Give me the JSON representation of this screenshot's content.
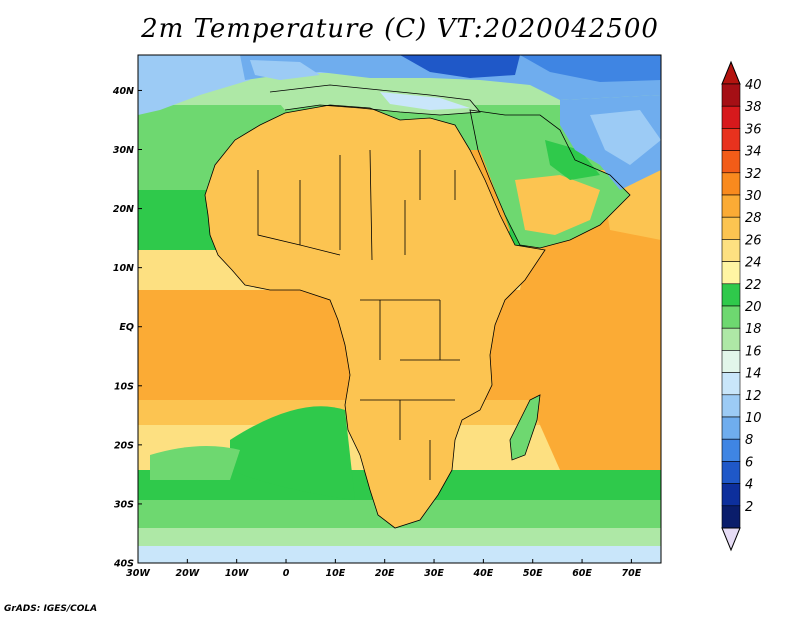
{
  "title": "2m Temperature (C) VT:2020042500",
  "credit": "GrADS: IGES/COLA",
  "map": {
    "region": "Africa",
    "projection": "latlon",
    "lon_range": [
      -30,
      76
    ],
    "lat_range": [
      -40,
      46
    ],
    "lon_ticks": [
      {
        "value": -30,
        "label": "30W"
      },
      {
        "value": -20,
        "label": "20W"
      },
      {
        "value": -10,
        "label": "10W"
      },
      {
        "value": 0,
        "label": "0"
      },
      {
        "value": 10,
        "label": "10E"
      },
      {
        "value": 20,
        "label": "20E"
      },
      {
        "value": 30,
        "label": "30E"
      },
      {
        "value": 40,
        "label": "40E"
      },
      {
        "value": 50,
        "label": "50E"
      },
      {
        "value": 60,
        "label": "60E"
      },
      {
        "value": 70,
        "label": "70E"
      }
    ],
    "lat_ticks": [
      {
        "value": 40,
        "label": "40N"
      },
      {
        "value": 30,
        "label": "30N"
      },
      {
        "value": 20,
        "label": "20N"
      },
      {
        "value": 10,
        "label": "10N"
      },
      {
        "value": 0,
        "label": "EQ"
      },
      {
        "value": -10,
        "label": "10S"
      },
      {
        "value": -20,
        "label": "20S"
      },
      {
        "value": -30,
        "label": "30S"
      },
      {
        "value": -40,
        "label": "40S"
      }
    ]
  },
  "colorbar": {
    "labels": [
      "40",
      "38",
      "36",
      "34",
      "32",
      "30",
      "28",
      "26",
      "24",
      "22",
      "20",
      "18",
      "16",
      "14",
      "12",
      "10",
      "8",
      "6",
      "4",
      "2"
    ],
    "colors": [
      "#a50f15",
      "#d7191c",
      "#e8321e",
      "#f25c18",
      "#f98a1e",
      "#fbab35",
      "#fcc451",
      "#fde081",
      "#fff5a3",
      "#2fc94b",
      "#6ed870",
      "#aee8a6",
      "#e2f6ea",
      "#c9e6fa",
      "#9ccbf5",
      "#6fadee",
      "#3f85e3",
      "#1f58c8",
      "#0d2f9c",
      "#0a1d6b"
    ],
    "over_color": "#b4140f",
    "under_color": "#e6dcf5"
  }
}
